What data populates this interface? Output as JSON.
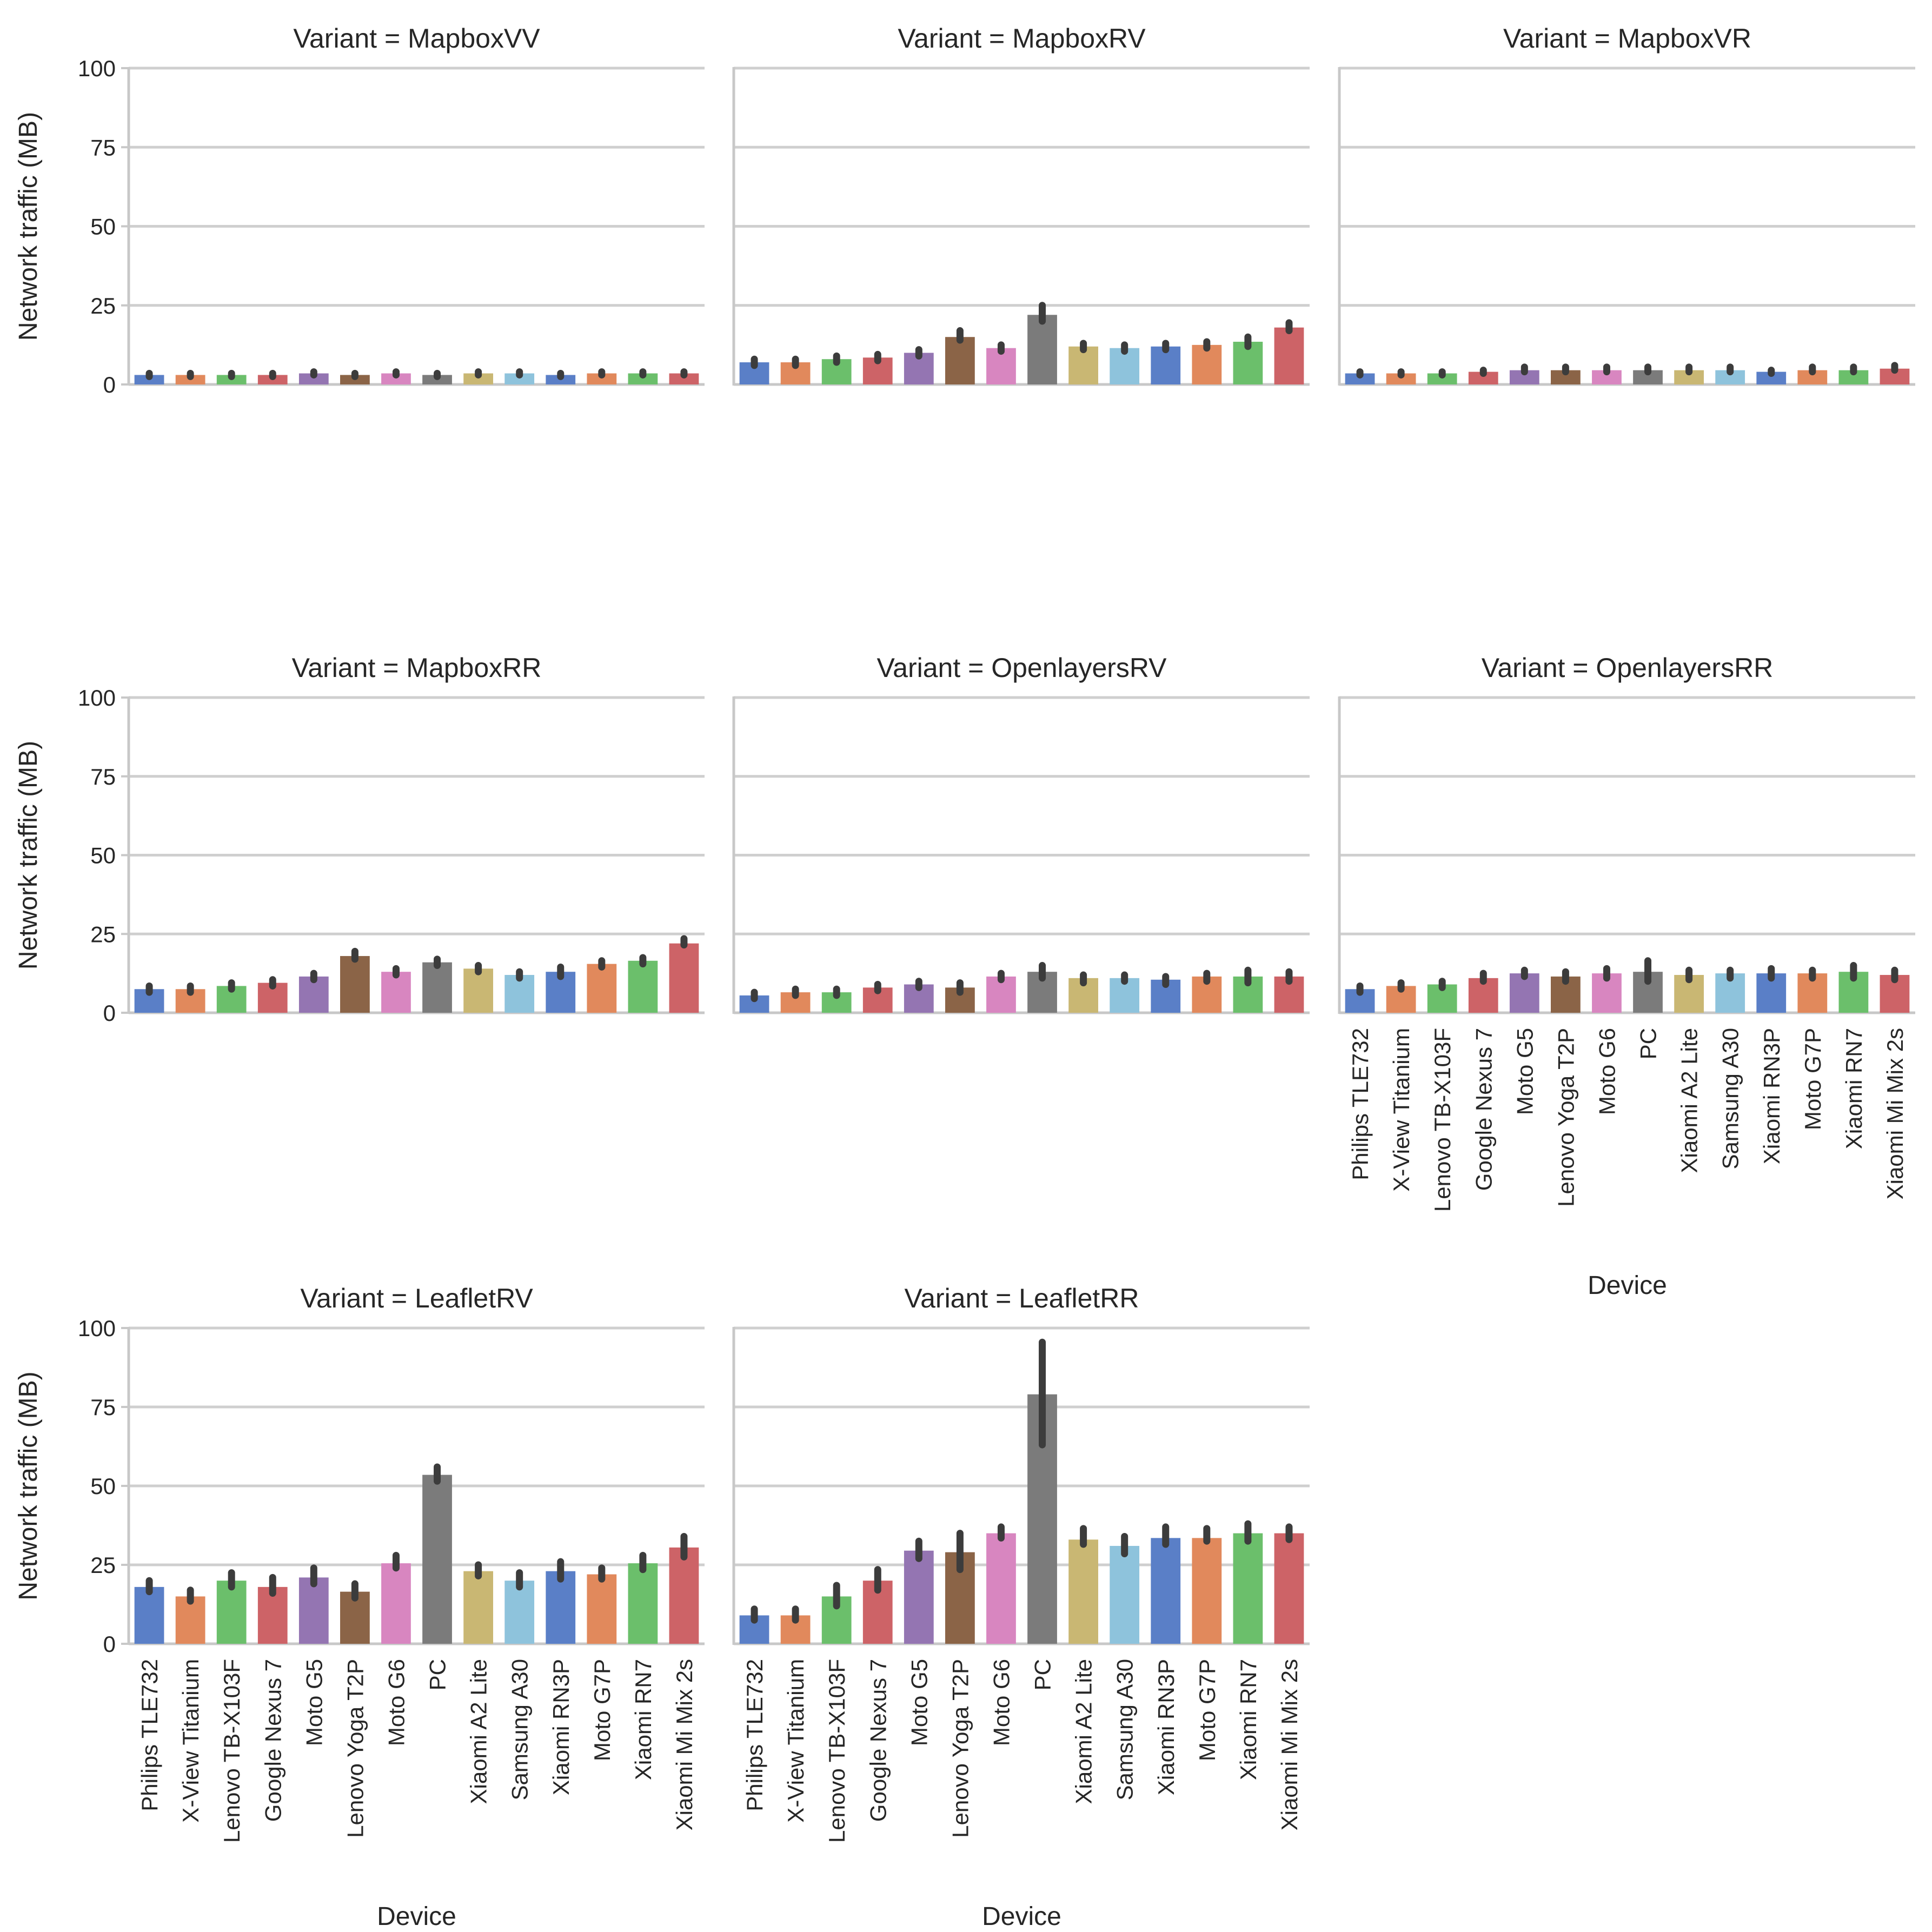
{
  "devices": [
    "Philips TLE732",
    "X-View Titanium",
    "Lenovo TB-X103F",
    "Google Nexus 7",
    "Moto G5",
    "Lenovo Yoga T2P",
    "Moto G6",
    "PC",
    "Xiaomi A2 Lite",
    "Samsung A30",
    "Xiaomi RN3P",
    "Moto G7P",
    "Xiaomi RN7",
    "Xiaomi Mi Mix 2s"
  ],
  "palette": [
    "#5a7fc7",
    "#e1895c",
    "#6bbf6b",
    "#cd6367",
    "#9475b2",
    "#8b6447",
    "#d886c0",
    "#7b7b7b",
    "#c9b773",
    "#8ec3dc",
    "#5a7fc7",
    "#e1895c",
    "#6bbf6b",
    "#cd6367"
  ],
  "chart_data": {
    "type": "bar",
    "title_prefix": "Variant = ",
    "ylabel": "Network traffic (MB)",
    "xlabel": "Device",
    "ylim": [
      0,
      100
    ],
    "yticks": [
      0,
      25,
      50,
      75,
      100
    ],
    "reference_line": 25,
    "panels": [
      {
        "variant": "MapboxVV",
        "values": [
          3,
          3,
          3,
          3,
          3.5,
          3,
          3.5,
          3,
          3.5,
          3.5,
          3,
          3.5,
          3.5,
          3.5
        ],
        "ci": [
          [
            2.5,
            3.5
          ],
          [
            2.5,
            3.5
          ],
          [
            2.5,
            3.5
          ],
          [
            2.5,
            3.5
          ],
          [
            3,
            4
          ],
          [
            2.5,
            3.5
          ],
          [
            3,
            4
          ],
          [
            2.5,
            3.5
          ],
          [
            3,
            4
          ],
          [
            3,
            4
          ],
          [
            2.5,
            3.5
          ],
          [
            3,
            4
          ],
          [
            3,
            4
          ],
          [
            3,
            4
          ]
        ]
      },
      {
        "variant": "MapboxRV",
        "values": [
          7,
          7,
          8,
          8.5,
          10,
          15,
          11.5,
          22,
          12,
          11.5,
          12,
          12.5,
          13.5,
          18
        ],
        "ci": [
          [
            6,
            8
          ],
          [
            6,
            8
          ],
          [
            7,
            9
          ],
          [
            7.5,
            9.5
          ],
          [
            9,
            11
          ],
          [
            14,
            17
          ],
          [
            10.5,
            12.5
          ],
          [
            20,
            25
          ],
          [
            11,
            13
          ],
          [
            10.5,
            12.5
          ],
          [
            11,
            13
          ],
          [
            11.5,
            13.5
          ],
          [
            12,
            15
          ],
          [
            17,
            19.5
          ]
        ]
      },
      {
        "variant": "MapboxVR",
        "values": [
          3.5,
          3.5,
          3.5,
          4,
          4.5,
          4.5,
          4.5,
          4.5,
          4.5,
          4.5,
          4,
          4.5,
          4.5,
          5
        ],
        "ci": [
          [
            3,
            4
          ],
          [
            3,
            4
          ],
          [
            3,
            4
          ],
          [
            3.5,
            4.5
          ],
          [
            4,
            5.5
          ],
          [
            4,
            5.5
          ],
          [
            4,
            5.5
          ],
          [
            4,
            5.5
          ],
          [
            4,
            5.5
          ],
          [
            4,
            5.5
          ],
          [
            3.5,
            4.5
          ],
          [
            4,
            5.5
          ],
          [
            4,
            5.5
          ],
          [
            4.5,
            6
          ]
        ]
      },
      {
        "variant": "MapboxRR",
        "values": [
          7.5,
          7.5,
          8.5,
          9.5,
          11.5,
          18,
          13,
          16,
          14,
          12,
          13,
          15.5,
          16.5,
          22
        ],
        "ci": [
          [
            6.5,
            8.5
          ],
          [
            6.5,
            8.5
          ],
          [
            7.5,
            9.5
          ],
          [
            8.5,
            10.5
          ],
          [
            10.5,
            12.5
          ],
          [
            17,
            19.5
          ],
          [
            12,
            14
          ],
          [
            15,
            17
          ],
          [
            13,
            15
          ],
          [
            11,
            13
          ],
          [
            11.5,
            14.5
          ],
          [
            14.5,
            16.5
          ],
          [
            15.5,
            17.5
          ],
          [
            21.5,
            23.5
          ]
        ]
      },
      {
        "variant": "OpenlayersRV",
        "values": [
          5.5,
          6.5,
          6.5,
          8,
          9,
          8,
          11.5,
          13,
          11,
          11,
          10.5,
          11.5,
          11.5,
          11.5
        ],
        "ci": [
          [
            4.5,
            6.5
          ],
          [
            5.5,
            7.5
          ],
          [
            5.5,
            7.5
          ],
          [
            7,
            9
          ],
          [
            8,
            10
          ],
          [
            6.5,
            9.5
          ],
          [
            10.5,
            12.5
          ],
          [
            11,
            15
          ],
          [
            9.5,
            12
          ],
          [
            10,
            12
          ],
          [
            9,
            11.5
          ],
          [
            10,
            12.5
          ],
          [
            9.5,
            13.5
          ],
          [
            10,
            13
          ]
        ]
      },
      {
        "variant": "OpenlayersRR",
        "values": [
          7.5,
          8.5,
          9,
          11,
          12.5,
          11.5,
          12.5,
          13,
          12,
          12.5,
          12.5,
          12.5,
          13,
          12
        ],
        "ci": [
          [
            6.5,
            8.5
          ],
          [
            7.5,
            9.5
          ],
          [
            8,
            10
          ],
          [
            10,
            12.5
          ],
          [
            11.5,
            13.5
          ],
          [
            10,
            13
          ],
          [
            11,
            14
          ],
          [
            10,
            16.5
          ],
          [
            10.5,
            13.5
          ],
          [
            11,
            13.5
          ],
          [
            11,
            14
          ],
          [
            11,
            13.5
          ],
          [
            11,
            15
          ],
          [
            10.5,
            13.5
          ]
        ]
      },
      {
        "variant": "LeafletRV",
        "values": [
          18,
          15,
          20,
          18,
          21,
          16.5,
          25.5,
          53.5,
          23,
          20,
          23,
          22,
          25.5,
          30.5
        ],
        "ci": [
          [
            16.5,
            20
          ],
          [
            13.5,
            17
          ],
          [
            18,
            22.5
          ],
          [
            16,
            21
          ],
          [
            19,
            24
          ],
          [
            14.5,
            19
          ],
          [
            24,
            28
          ],
          [
            51.5,
            56
          ],
          [
            21.5,
            25
          ],
          [
            18,
            22.5
          ],
          [
            20.5,
            26
          ],
          [
            20.5,
            24
          ],
          [
            23.5,
            28
          ],
          [
            27.5,
            34
          ]
        ]
      },
      {
        "variant": "LeafletRR",
        "values": [
          9,
          9,
          15,
          20,
          29.5,
          29,
          35,
          79,
          33,
          31,
          33.5,
          33.5,
          35,
          35
        ],
        "ci": [
          [
            7.5,
            11
          ],
          [
            7.5,
            11
          ],
          [
            12,
            18.5
          ],
          [
            17,
            23.5
          ],
          [
            27,
            32.5
          ],
          [
            23.5,
            35
          ],
          [
            33.5,
            37
          ],
          [
            63,
            95.5
          ],
          [
            31.5,
            36.5
          ],
          [
            28.5,
            34
          ],
          [
            31.5,
            37
          ],
          [
            32.5,
            36.5
          ],
          [
            32.5,
            38
          ],
          [
            33,
            37
          ]
        ]
      }
    ]
  }
}
